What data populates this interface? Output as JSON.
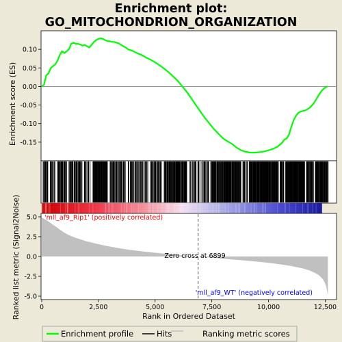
{
  "title_line1": "Enrichment plot:",
  "title_line2": "GO_MITOCHONDRION_ORGANIZATION",
  "colors": {
    "background": "#ece9d8",
    "enrichment_line": "#00ff00",
    "hits": "#000000",
    "metric_fill": "#c0c0c0",
    "positive_label": "#ff0000",
    "negative_label": "#0000ff"
  },
  "chart_data": [
    {
      "type": "line",
      "name": "enrichment-profile",
      "ylabel": "Enrichment score (ES)",
      "xlim": [
        0,
        13000
      ],
      "ylim": [
        -0.2,
        0.15
      ],
      "yticks": [
        0.1,
        0.05,
        0.0,
        -0.05,
        -0.1,
        -0.15
      ],
      "ytick_labels": [
        "0.10",
        "0.05",
        "0.00",
        "-0.05",
        "-0.10",
        "-0.15"
      ],
      "x": [
        0,
        100,
        200,
        300,
        400,
        500,
        600,
        700,
        800,
        900,
        1000,
        1100,
        1200,
        1300,
        1400,
        1500,
        1600,
        1700,
        1800,
        1900,
        2000,
        2100,
        2200,
        2300,
        2400,
        2500,
        2600,
        2700,
        2800,
        2900,
        3000,
        3100,
        3200,
        3300,
        3400,
        3500,
        3600,
        3700,
        3800,
        3900,
        4000,
        4200,
        4400,
        4600,
        4800,
        5000,
        5200,
        5400,
        5600,
        5800,
        6000,
        6200,
        6400,
        6600,
        6800,
        7000,
        7200,
        7400,
        7600,
        7800,
        8000,
        8200,
        8400,
        8600,
        8800,
        9000,
        9200,
        9400,
        9600,
        9800,
        10000,
        10200,
        10400,
        10600,
        10700,
        10800,
        10900,
        11000,
        11100,
        11200,
        11300,
        11400,
        11500,
        11600,
        11700,
        11800,
        11900,
        12000,
        12100,
        12200,
        12300,
        12400,
        12500,
        12600
      ],
      "y": [
        0.0,
        0.005,
        0.03,
        0.035,
        0.05,
        0.055,
        0.06,
        0.07,
        0.085,
        0.095,
        0.09,
        0.095,
        0.1,
        0.115,
        0.118,
        0.115,
        0.115,
        0.113,
        0.11,
        0.112,
        0.108,
        0.105,
        0.112,
        0.12,
        0.125,
        0.128,
        0.13,
        0.128,
        0.125,
        0.122,
        0.122,
        0.12,
        0.12,
        0.118,
        0.116,
        0.112,
        0.108,
        0.105,
        0.1,
        0.098,
        0.096,
        0.09,
        0.085,
        0.078,
        0.072,
        0.065,
        0.057,
        0.048,
        0.038,
        0.027,
        0.015,
        0.0,
        -0.015,
        -0.032,
        -0.05,
        -0.068,
        -0.085,
        -0.1,
        -0.115,
        -0.128,
        -0.14,
        -0.148,
        -0.155,
        -0.165,
        -0.172,
        -0.176,
        -0.178,
        -0.178,
        -0.177,
        -0.175,
        -0.172,
        -0.168,
        -0.162,
        -0.152,
        -0.143,
        -0.14,
        -0.13,
        -0.11,
        -0.092,
        -0.08,
        -0.072,
        -0.068,
        -0.066,
        -0.065,
        -0.062,
        -0.058,
        -0.052,
        -0.045,
        -0.035,
        -0.025,
        -0.015,
        -0.008,
        -0.003,
        0.0
      ]
    },
    {
      "type": "bar",
      "name": "ranking-metric",
      "ylabel": "Ranked list metric (Signal2Noise)",
      "xlabel": "Rank in Ordered Dataset",
      "xlim": [
        0,
        13000
      ],
      "ylim": [
        -5.0,
        5.0
      ],
      "xticks": [
        0,
        2500,
        5000,
        7500,
        10000,
        12500
      ],
      "xtick_labels": [
        "0",
        "2,500",
        "5,000",
        "7,500",
        "10,000",
        "12,500"
      ],
      "yticks": [
        5.0,
        2.5,
        0.0,
        -2.5,
        -5.0
      ],
      "ytick_labels": [
        "5.0",
        "2.5",
        "0.0",
        "-2.5",
        "-5.0"
      ],
      "x": [
        0,
        200,
        400,
        600,
        800,
        1000,
        1200,
        1500,
        2000,
        2500,
        3000,
        3500,
        4000,
        4500,
        5000,
        5500,
        6000,
        6500,
        6899,
        7500,
        8000,
        8500,
        9000,
        9500,
        10000,
        10500,
        11000,
        11500,
        11800,
        12000,
        12200,
        12350,
        12450,
        12550,
        12620
      ],
      "values": [
        4.9,
        4.6,
        4.2,
        3.8,
        3.4,
        3.0,
        2.7,
        2.35,
        1.9,
        1.55,
        1.25,
        1.0,
        0.8,
        0.62,
        0.47,
        0.32,
        0.2,
        0.08,
        0.0,
        -0.15,
        -0.28,
        -0.4,
        -0.52,
        -0.65,
        -0.8,
        -0.98,
        -1.2,
        -1.5,
        -1.75,
        -2.0,
        -2.3,
        -2.7,
        -3.1,
        -3.8,
        -4.9
      ],
      "zero_cross": 6899,
      "annotations": {
        "positive": "'mll_af9_Rip1' (positively correlated)",
        "negative": "'mll_af9_WT' (negatively correlated)",
        "zero_cross": "Zero cross at 6899"
      }
    }
  ],
  "hits": {
    "xlim": [
      0,
      13000
    ],
    "clusters": [
      [
        50,
        300,
        7
      ],
      [
        350,
        600,
        6
      ],
      [
        700,
        1100,
        14
      ],
      [
        1200,
        1800,
        18
      ],
      [
        1850,
        2150,
        6
      ],
      [
        2250,
        2900,
        28
      ],
      [
        3000,
        3700,
        20
      ],
      [
        3800,
        4700,
        22
      ],
      [
        4800,
        5300,
        14
      ],
      [
        5400,
        6400,
        40
      ],
      [
        6500,
        7000,
        10
      ],
      [
        7050,
        7400,
        8
      ],
      [
        7450,
        8800,
        55
      ],
      [
        8850,
        9100,
        6
      ],
      [
        9150,
        10450,
        60
      ],
      [
        10500,
        10700,
        6
      ],
      [
        10750,
        11600,
        45
      ],
      [
        11650,
        12000,
        12
      ],
      [
        12050,
        12650,
        24
      ]
    ]
  },
  "legend": {
    "items": [
      "Enrichment profile",
      "Hits",
      "Ranking metric scores"
    ]
  }
}
